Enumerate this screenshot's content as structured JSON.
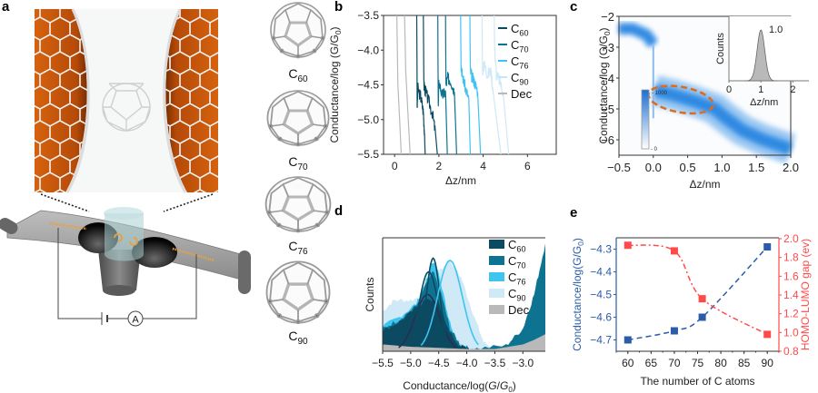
{
  "panels": {
    "a": {
      "letter": "a",
      "circuit_meter_label": "A",
      "fullerenes": [
        {
          "name": "C",
          "sub": "60"
        },
        {
          "name": "C",
          "sub": "70"
        },
        {
          "name": "C",
          "sub": "76"
        },
        {
          "name": "C",
          "sub": "90"
        }
      ]
    },
    "b": {
      "letter": "b"
    },
    "c": {
      "letter": "c"
    },
    "d": {
      "letter": "d"
    },
    "e": {
      "letter": "e"
    }
  },
  "colors": {
    "C60": "#0b4a60",
    "C70": "#0e7391",
    "C76": "#3fc4ef",
    "C90": "#cfe9f7",
    "Dec": "#b9b9b9",
    "blue_axis": "#2a5ca8",
    "red_axis": "#ff4a4a",
    "orange": "#e06a1a",
    "heat": "#1b7fe0"
  },
  "chart_data": [
    {
      "id": "b",
      "type": "line",
      "title": "",
      "xlabel": "Δz/nm",
      "ylabel": "Conductance/log (G/G0)",
      "xlim": [
        -0.5,
        7.3
      ],
      "ylim": [
        -5.5,
        -3.5
      ],
      "xticks": [
        0,
        2,
        4,
        6
      ],
      "xtick_labels": [
        "0",
        "2",
        "4",
        "6"
      ],
      "yticks": [
        -3.5,
        -4.0,
        -4.5,
        -5.0,
        -5.5
      ],
      "ytick_labels": [
        "−3.5",
        "−4.0",
        "−4.5",
        "−5.0",
        "−5.5"
      ],
      "legend": {
        "placement": "top-right",
        "entries": [
          {
            "key": "C60",
            "label": "C",
            "sub": "60"
          },
          {
            "key": "C70",
            "label": "C",
            "sub": "70"
          },
          {
            "key": "C76",
            "label": "C",
            "sub": "76"
          },
          {
            "key": "C90",
            "label": "C",
            "sub": "90"
          },
          {
            "key": "Dec",
            "label": "Dec",
            "sub": ""
          }
        ]
      },
      "series": [
        {
          "name": "Dec",
          "traces": [
            {
              "x": [
                0.1,
                0.15,
                0.3
              ],
              "y": [
                -3.5,
                -4.5,
                -5.5
              ]
            },
            {
              "x": [
                0.45,
                0.5,
                0.7
              ],
              "y": [
                -3.5,
                -4.3,
                -5.5
              ]
            }
          ]
        },
        {
          "name": "C60",
          "traces": [
            {
              "x": [
                1.0,
                1.02,
                1.05,
                1.2,
                1.3,
                1.35,
                1.38
              ],
              "y": [
                -3.5,
                -4.8,
                -4.55,
                -4.7,
                -4.9,
                -5.2,
                -5.5
              ]
            },
            {
              "x": [
                1.3,
                1.32,
                1.36,
                1.5,
                1.7,
                1.85,
                1.93
              ],
              "y": [
                -3.5,
                -4.5,
                -4.55,
                -4.7,
                -4.9,
                -5.2,
                -5.5
              ]
            }
          ]
        },
        {
          "name": "C70",
          "traces": [
            {
              "x": [
                1.95,
                1.97,
                2.0,
                2.15,
                2.3,
                2.38
              ],
              "y": [
                -3.5,
                -4.8,
                -4.45,
                -4.65,
                -4.6,
                -5.5
              ]
            },
            {
              "x": [
                2.3,
                2.32,
                2.4,
                2.55,
                2.7,
                2.8
              ],
              "y": [
                -3.5,
                -4.5,
                -4.4,
                -4.45,
                -4.6,
                -5.5
              ]
            }
          ]
        },
        {
          "name": "C76",
          "traces": [
            {
              "x": [
                2.98,
                3.0,
                3.05,
                3.2,
                3.35,
                3.42
              ],
              "y": [
                -3.5,
                -4.2,
                -4.35,
                -4.55,
                -4.7,
                -5.5
              ]
            },
            {
              "x": [
                3.4,
                3.42,
                3.5,
                3.6,
                3.75,
                3.88
              ],
              "y": [
                -3.5,
                -4.3,
                -4.4,
                -4.45,
                -4.6,
                -5.5
              ]
            }
          ]
        },
        {
          "name": "C90",
          "traces": [
            {
              "x": [
                3.95,
                3.97,
                4.05,
                4.2,
                4.35,
                4.45,
                4.8
              ],
              "y": [
                -3.5,
                -4.3,
                -4.2,
                -4.35,
                -4.3,
                -4.6,
                -5.5
              ]
            },
            {
              "x": [
                4.5,
                4.52,
                4.6,
                4.75,
                4.9,
                5.15
              ],
              "y": [
                -3.5,
                -4.0,
                -4.35,
                -4.45,
                -4.6,
                -5.5
              ]
            }
          ]
        }
      ]
    },
    {
      "id": "c",
      "type": "heatmap",
      "xlabel": "Δz/nm",
      "ylabel": "Conductance/log (G/G0)",
      "xlim": [
        -0.5,
        2.0
      ],
      "ylim": [
        -6.5,
        -2.0
      ],
      "xticks": [
        -0.5,
        0.0,
        0.5,
        1.0,
        1.5,
        2.0
      ],
      "xtick_labels": [
        "−0.5",
        "0.0",
        "0.5",
        "1.0",
        "1.5",
        "2.0"
      ],
      "yticks": [
        -2,
        -3,
        -4,
        -5,
        -6
      ],
      "ytick_labels": [
        "−2",
        "−3",
        "−4",
        "−5",
        "−6"
      ],
      "colorbar": {
        "min": 0,
        "max": 1000,
        "labels": [
          "1000",
          "0"
        ]
      },
      "bands": [
        {
          "x": [
            -0.5,
            -0.3,
            -0.1,
            0.0
          ],
          "y": [
            -2.4,
            -2.4,
            -2.6,
            -2.9
          ]
        },
        {
          "x": [
            0.02,
            0.3,
            0.6,
            0.9,
            1.0,
            1.3,
            1.6,
            2.0
          ],
          "y": [
            -4.4,
            -4.55,
            -4.75,
            -5.0,
            -5.2,
            -5.7,
            -6.0,
            -6.3
          ]
        }
      ],
      "annotation": {
        "type": "dashed-ellipse",
        "center": [
          0.4,
          -4.7
        ],
        "note": "plateau region"
      },
      "inset": {
        "type": "histogram",
        "xlabel": "Δz/nm",
        "ylabel": "Counts",
        "xlim": [
          0,
          2.5
        ],
        "xticks": [
          0,
          1,
          2
        ],
        "xtick_labels": [
          "0",
          "1",
          "2"
        ],
        "peak_label": "1.0",
        "peak": 1.0,
        "sigma": 0.12
      }
    },
    {
      "id": "d",
      "type": "area",
      "xlabel": "Conductance/log(G/G0)",
      "ylabel": "Counts",
      "xlim": [
        -5.5,
        -2.6
      ],
      "xticks": [
        -5.5,
        -5.0,
        -4.5,
        -4.0,
        -3.5,
        -3.0
      ],
      "xtick_labels": [
        "−5.5",
        "−5.0",
        "−4.5",
        "−4.0",
        "−3.5",
        "−3.0"
      ],
      "legend": {
        "placement": "top-right",
        "entries": [
          {
            "key": "C60",
            "label": "C",
            "sub": "60"
          },
          {
            "key": "C70",
            "label": "C",
            "sub": "70"
          },
          {
            "key": "C76",
            "label": "C",
            "sub": "76"
          },
          {
            "key": "C90",
            "label": "C",
            "sub": "90"
          },
          {
            "key": "Dec",
            "label": "Dec",
            "sub": ""
          }
        ]
      },
      "series": [
        {
          "name": "C90",
          "x": [
            -5.5,
            -5.3,
            -5.0,
            -4.7,
            -4.5,
            -4.3,
            -4.1,
            -3.9,
            -3.7,
            -3.5
          ],
          "y": [
            0.35,
            0.45,
            0.45,
            0.5,
            0.7,
            0.8,
            0.65,
            0.35,
            0.08,
            0.02
          ]
        },
        {
          "name": "C76",
          "x": [
            -5.5,
            -5.2,
            -4.9,
            -4.7,
            -4.6,
            -4.5,
            -4.35,
            -4.2,
            -4.0,
            -3.9
          ],
          "y": [
            0.22,
            0.3,
            0.42,
            0.65,
            0.8,
            0.7,
            0.35,
            0.1,
            0.02,
            0.0
          ]
        },
        {
          "name": "C70",
          "x": [
            -5.5,
            -5.2,
            -4.9,
            -4.7,
            -4.6,
            -4.45,
            -4.3,
            -4.1,
            -3.9,
            -3.3,
            -3.0,
            -2.8,
            -2.6
          ],
          "y": [
            0.2,
            0.28,
            0.4,
            0.62,
            0.7,
            0.5,
            0.2,
            0.05,
            0.02,
            0.05,
            0.2,
            0.5,
            0.95
          ]
        },
        {
          "name": "C60",
          "x": [
            -5.5,
            -5.2,
            -4.9,
            -4.7,
            -4.5,
            -4.35,
            -4.2,
            -4.0,
            -3.8
          ],
          "y": [
            0.18,
            0.26,
            0.38,
            0.47,
            0.42,
            0.22,
            0.08,
            0.02,
            0.0
          ]
        },
        {
          "name": "Dec",
          "x": [
            -5.5,
            -5.0,
            -4.5,
            -4.0,
            -3.5,
            -3.0,
            -2.8,
            -2.6
          ],
          "y": [
            0.06,
            0.04,
            0.03,
            0.02,
            0.02,
            0.06,
            0.1,
            0.15
          ]
        }
      ],
      "fits": [
        {
          "name": "C60",
          "peak": -4.7,
          "height": 0.5,
          "sigma": 0.22
        },
        {
          "name": "C70",
          "peak": -4.68,
          "height": 0.7,
          "sigma": 0.17
        },
        {
          "name": "C76",
          "peak": -4.6,
          "height": 0.82,
          "sigma": 0.12
        },
        {
          "name": "C90",
          "peak": -4.3,
          "height": 0.8,
          "sigma": 0.22
        }
      ]
    },
    {
      "id": "e",
      "type": "line",
      "xlabel": "The number of C atoms",
      "ylabel_left": "Conductance/log(G/G0)",
      "ylabel_right": "HOMO-LUMO gap (ev)",
      "xlim": [
        57.5,
        92.5
      ],
      "xticks": [
        60,
        65,
        70,
        75,
        80,
        85,
        90
      ],
      "xtick_labels": [
        "60",
        "65",
        "70",
        "75",
        "80",
        "85",
        "90"
      ],
      "ylim_left": [
        -4.75,
        -4.25
      ],
      "yticks_left": [
        -4.3,
        -4.4,
        -4.5,
        -4.6,
        -4.7
      ],
      "ytick_labels_left": [
        "−4.3",
        "−4.4",
        "−4.5",
        "−4.6",
        "−4.7"
      ],
      "ylim_right": [
        0.8,
        2.0
      ],
      "yticks_right": [
        2.0,
        1.8,
        1.6,
        1.4,
        1.2,
        1.0,
        0.8
      ],
      "ytick_labels_right": [
        "2.0",
        "1.8",
        "1.6",
        "1.4",
        "1.2",
        "1.0",
        "0.8"
      ],
      "series": [
        {
          "name": "Conductance",
          "axis": "left",
          "x": [
            60,
            70,
            76,
            90
          ],
          "y": [
            -4.7,
            -4.66,
            -4.6,
            -4.29
          ],
          "style": "dashed"
        },
        {
          "name": "HOMO-LUMO gap",
          "axis": "right",
          "x": [
            60,
            70,
            76,
            90
          ],
          "y": [
            1.93,
            1.87,
            1.36,
            0.98
          ],
          "style": "dash-dot"
        }
      ]
    }
  ]
}
